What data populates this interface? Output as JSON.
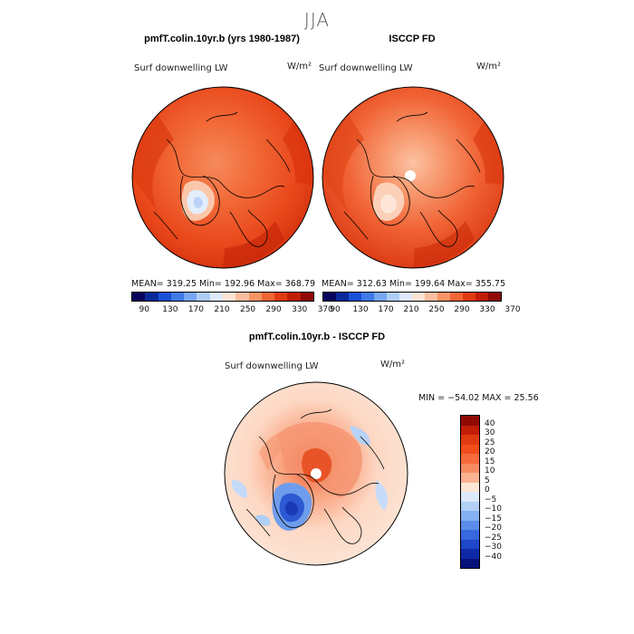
{
  "figure": {
    "title": "JJA",
    "panel_left": {
      "heading": "pmfT.colin.10yr.b (yrs 1980-1987)",
      "variable": "Surf downwelling LW",
      "units": "W/m²",
      "stats": "MEAN= 319.25   Min= 192.96   Max= 368.79"
    },
    "panel_right": {
      "heading": "ISCCP FD",
      "variable": "Surf downwelling LW",
      "units": "W/m²",
      "stats": "MEAN= 312.63   Min= 199.64   Max= 355.75"
    },
    "panel_diff": {
      "heading": "pmfT.colin.10yr.b - ISCCP FD",
      "variable": "Surf downwelling LW",
      "units": "W/m²",
      "stats": "MIN = −54.02 MAX =  25.56"
    }
  },
  "colorbar_abs": {
    "colors": [
      "#08045e",
      "#0a2a9c",
      "#1a4fd6",
      "#3f7ae8",
      "#77a6f2",
      "#afcdf7",
      "#dde9fb",
      "#fde4d4",
      "#fbbd9f",
      "#f79466",
      "#f26535",
      "#e03a10",
      "#c21d06",
      "#8f0a03"
    ],
    "ticks": [
      "90",
      "130",
      "170",
      "210",
      "250",
      "290",
      "330",
      "370"
    ]
  },
  "colorbar_diff": {
    "colors": [
      "#8f0a03",
      "#c21d06",
      "#e03a10",
      "#f24d1c",
      "#f66a3b",
      "#f98c63",
      "#fbb394",
      "#fde6d6",
      "#ddeafb",
      "#b3d0f7",
      "#85b0f1",
      "#5a8de9",
      "#3768dd",
      "#1e47cb",
      "#0f29a6",
      "#06117a"
    ],
    "ticks": [
      "40",
      "30",
      "25",
      "20",
      "15",
      "10",
      "5",
      "0",
      "−5",
      "−10",
      "−15",
      "−20",
      "−25",
      "−30",
      "−40"
    ]
  }
}
